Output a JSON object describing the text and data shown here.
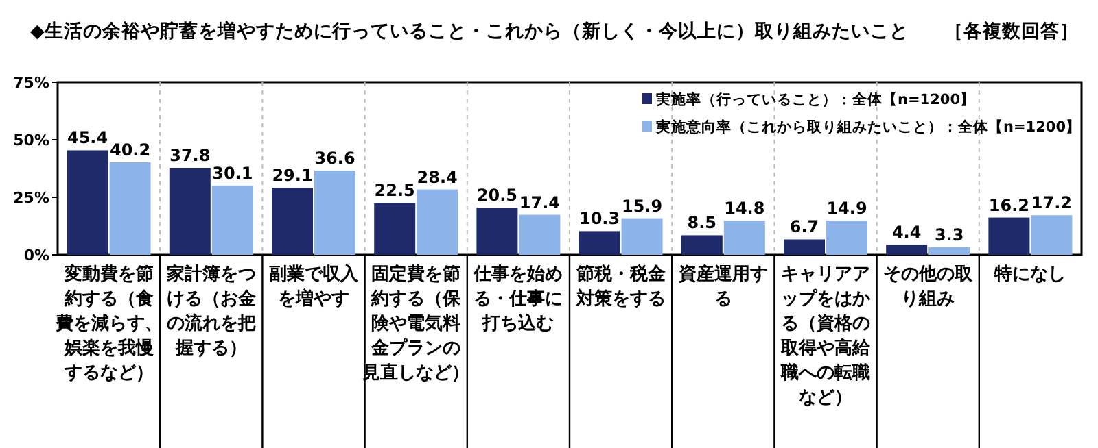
{
  "chart_data": {
    "type": "bar",
    "title": "◆生活の余裕や貯蓄を増やすために行っていること・これから（新しく・今以上に）取り組みたいこと",
    "subtitle": "［各複数回答］",
    "categories": [
      "変動費を節約する（食費を減らす、娯楽を我慢するなど）",
      "家計簿をつける（お金の流れを把握する）",
      "副業で収入を増やす",
      "固定費を節約する（保険や電気料金プランの見直しなど）",
      "仕事を始める・仕事に打ち込む",
      "節税・税金対策をする",
      "資産運用する",
      "キャリアアップをはかる（資格の取得や高給職への転職など）",
      "その他の取り組み",
      "特になし"
    ],
    "series": [
      {
        "name": "実施率（行っていること）：全体【n=1200】",
        "color": "#1f2a6b",
        "values": [
          45.4,
          37.8,
          29.1,
          22.5,
          20.5,
          10.3,
          8.5,
          6.7,
          4.4,
          16.2
        ]
      },
      {
        "name": "実施意向率（これから取り組みたいこと）：全体【n=1200】",
        "color": "#8db4e8",
        "values": [
          40.2,
          30.1,
          36.6,
          28.4,
          17.4,
          15.9,
          14.8,
          14.9,
          3.3,
          17.2
        ]
      }
    ],
    "ylim": [
      0,
      75
    ],
    "yticks": [
      {
        "value": 0,
        "label": "0%"
      },
      {
        "value": 25,
        "label": "25%"
      },
      {
        "value": 50,
        "label": "50%"
      },
      {
        "value": 75,
        "label": "75%"
      }
    ],
    "data_labels": true,
    "legend": "top right"
  }
}
